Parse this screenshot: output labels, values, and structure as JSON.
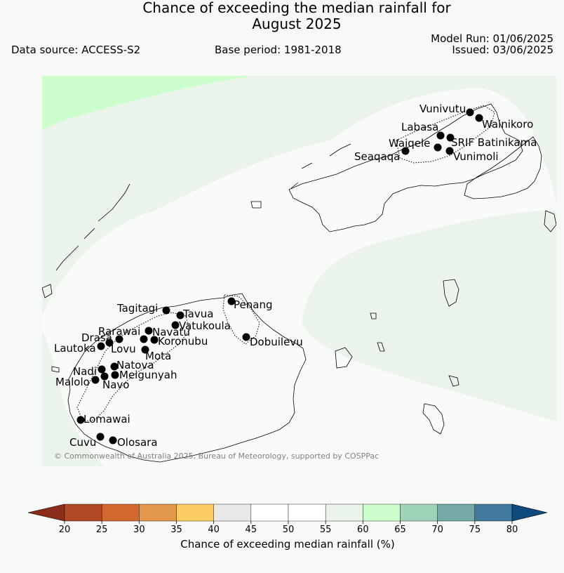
{
  "header": {
    "title_line1": "Chance of exceeding the median rainfall for",
    "title_line2": "August 2025",
    "data_source": "Data source: ACCESS-S2",
    "base_period": "Base period: 1981-2018",
    "model_run": "Model Run: 01/06/2025",
    "issued": "Issued: 03/06/2025"
  },
  "map": {
    "credit": "© Commonwealth of Australia 2025, Bureau of Meteorology, supported by COSPPac",
    "stations": [
      {
        "name": "Vunivutu"
      },
      {
        "name": "Wainikoro"
      },
      {
        "name": "Labasa"
      },
      {
        "name": "Waiqele"
      },
      {
        "name": "SRIF Batinikama"
      },
      {
        "name": "Seaqaqa"
      },
      {
        "name": "Vunimoli"
      },
      {
        "name": "Penang"
      },
      {
        "name": "Tagitagi"
      },
      {
        "name": "Tavua"
      },
      {
        "name": "Vatukoula"
      },
      {
        "name": "Rarawai"
      },
      {
        "name": "Navatu"
      },
      {
        "name": "Drasa"
      },
      {
        "name": "Koronubu"
      },
      {
        "name": "Lautoka"
      },
      {
        "name": "Lovu"
      },
      {
        "name": "Mota"
      },
      {
        "name": "Dobuilevu"
      },
      {
        "name": "Natova"
      },
      {
        "name": "Nadi"
      },
      {
        "name": "Meigunyah"
      },
      {
        "name": "Malolo"
      },
      {
        "name": "Navo"
      },
      {
        "name": "Lomawai"
      },
      {
        "name": "Cuvu"
      },
      {
        "name": "Olosara"
      }
    ]
  },
  "colorbar": {
    "title": "Chance of exceeding median rainfall (%)",
    "ticks": [
      "20",
      "25",
      "30",
      "35",
      "40",
      "45",
      "50",
      "55",
      "60",
      "65",
      "70",
      "75",
      "80"
    ],
    "under_color": "#8c2d1c",
    "over_color": "#0e4a7d",
    "colors": [
      "#b04a25",
      "#d2692f",
      "#e2984a",
      "#fdcd65",
      "#e8e8e6",
      "#ffffff",
      "#ffffff",
      "#eaf4ea",
      "#ccfdcc",
      "#9ed3b8",
      "#74a9a8",
      "#3f7a9c"
    ]
  },
  "legend_levels": {
    "55-60": "#eaf4ea",
    "60-65": "#ccfdcc",
    "45-55": "#f9fbf9"
  }
}
